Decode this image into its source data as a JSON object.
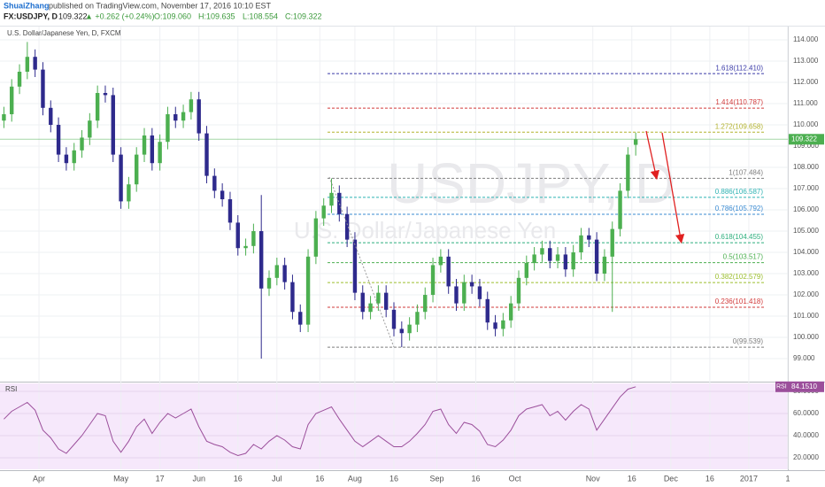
{
  "header": {
    "author": "ShuaiZhang",
    "published": "published on TradingView.com, November 17, 2016 10:10 EST",
    "symbol": "FX:USDJPY, D",
    "price": "109.322",
    "change": "▲ +0.262 (+0.24%)",
    "open": "O:109.060",
    "high": "H:109.635",
    "low": "L:108.554",
    "close": "C:109.322"
  },
  "chart_data": {
    "type": "candlestick",
    "title": "U.S. Dollar/Japanese Yen, D, FXCM",
    "watermark": "USDJPY, D",
    "watermark_subtitle": "U.S. Dollar/Japanese Yen",
    "up_color": "#4caf50",
    "down_color": "#2e2a8c",
    "x": [
      0,
      2,
      4,
      6,
      8,
      10,
      12,
      14,
      16,
      18,
      20,
      22,
      24,
      26,
      28,
      30,
      32,
      34,
      36,
      38,
      40,
      42,
      44,
      46,
      48,
      50,
      52,
      54,
      56,
      58,
      60,
      62,
      64,
      66,
      68,
      70,
      72,
      74,
      76,
      78,
      80,
      82,
      84,
      86,
      88,
      90,
      92,
      94,
      96,
      98,
      100,
      102,
      104,
      106,
      108,
      110,
      112,
      114,
      116,
      118,
      120,
      122,
      124,
      126,
      128,
      130,
      132,
      134,
      136,
      138,
      140,
      142,
      144,
      146,
      148,
      150,
      152,
      154,
      156,
      158,
      160,
      162
    ],
    "open": [
      110.2,
      110.5,
      111.8,
      112.5,
      113.2,
      112.6,
      110.8,
      110.0,
      108.6,
      108.2,
      108.8,
      109.4,
      110.2,
      111.5,
      111.4,
      108.6,
      106.4,
      107.2,
      108.6,
      109.5,
      108.2,
      109.2,
      110.5,
      110.2,
      110.6,
      111.2,
      109.6,
      107.6,
      106.9,
      106.5,
      105.4,
      104.2,
      104.3,
      105.0,
      102.3,
      102.8,
      103.4,
      102.6,
      101.2,
      100.6,
      103.8,
      105.6,
      106.2,
      106.8,
      105.8,
      104.6,
      102.1,
      101.2,
      101.6,
      102.1,
      101.3,
      100.4,
      100.2,
      100.6,
      101.2,
      102.0,
      103.4,
      103.8,
      102.4,
      101.6,
      102.6,
      102.4,
      101.8,
      100.7,
      100.4,
      100.8,
      101.6,
      102.8,
      103.5,
      103.9,
      104.2,
      103.6,
      103.9,
      103.2,
      104.0,
      104.8,
      104.6,
      103.0,
      103.8,
      105.1,
      106.9,
      109.06
    ],
    "high": [
      110.85,
      112.15,
      112.85,
      113.9,
      113.55,
      112.95,
      111.15,
      110.35,
      108.95,
      109.15,
      109.75,
      110.55,
      111.85,
      111.85,
      111.75,
      108.95,
      107.55,
      108.95,
      109.85,
      109.85,
      109.55,
      110.85,
      110.85,
      110.95,
      111.55,
      111.55,
      109.95,
      107.95,
      107.25,
      106.85,
      105.75,
      104.65,
      105.35,
      106.7,
      103.15,
      103.75,
      103.75,
      102.95,
      101.55,
      104.15,
      105.95,
      106.55,
      107.48,
      107.15,
      106.15,
      104.95,
      102.45,
      101.95,
      102.45,
      102.45,
      101.65,
      100.75,
      100.95,
      101.55,
      102.35,
      103.75,
      104.15,
      104.15,
      102.75,
      102.95,
      102.95,
      102.75,
      102.15,
      101.05,
      101.15,
      101.95,
      103.15,
      103.85,
      104.25,
      104.55,
      104.55,
      104.25,
      104.25,
      104.35,
      105.15,
      105.15,
      104.95,
      104.15,
      105.45,
      107.25,
      108.95,
      109.635
    ],
    "low": [
      109.85,
      110.15,
      111.45,
      112.15,
      112.25,
      110.45,
      109.65,
      108.25,
      107.85,
      107.85,
      108.45,
      109.05,
      109.85,
      111.05,
      108.25,
      106.05,
      106.05,
      106.85,
      108.25,
      107.85,
      107.85,
      108.85,
      109.85,
      109.85,
      110.25,
      109.25,
      107.25,
      106.55,
      106.15,
      105.05,
      103.85,
      103.85,
      103.95,
      99.0,
      101.95,
      102.45,
      102.25,
      100.85,
      100.25,
      100.25,
      103.45,
      105.25,
      105.85,
      105.45,
      104.25,
      101.75,
      100.85,
      100.85,
      101.25,
      100.95,
      100.05,
      99.54,
      99.85,
      100.25,
      100.85,
      101.65,
      103.05,
      102.05,
      101.25,
      101.25,
      102.05,
      101.45,
      100.35,
      100.05,
      100.05,
      100.45,
      101.25,
      102.45,
      103.15,
      103.55,
      103.25,
      103.25,
      102.85,
      102.85,
      103.65,
      104.25,
      102.65,
      102.65,
      101.2,
      104.75,
      106.55,
      108.554
    ],
    "close": [
      110.5,
      111.8,
      112.5,
      113.2,
      112.6,
      110.8,
      110.0,
      108.6,
      108.2,
      108.8,
      109.4,
      110.2,
      111.5,
      111.4,
      108.6,
      106.4,
      107.2,
      108.6,
      109.5,
      108.2,
      109.2,
      110.5,
      110.2,
      110.6,
      111.2,
      109.6,
      107.6,
      106.9,
      106.5,
      105.4,
      104.2,
      104.3,
      105.0,
      102.3,
      102.8,
      103.4,
      102.6,
      101.2,
      100.6,
      103.8,
      105.6,
      106.2,
      106.8,
      105.8,
      104.6,
      102.1,
      101.2,
      101.6,
      102.1,
      101.3,
      100.4,
      100.2,
      100.6,
      101.2,
      102.0,
      103.4,
      103.8,
      102.4,
      101.6,
      102.6,
      102.4,
      101.8,
      100.7,
      100.4,
      100.8,
      101.6,
      102.8,
      103.5,
      103.9,
      104.2,
      103.6,
      103.9,
      103.2,
      104.0,
      104.8,
      104.6,
      103.0,
      103.8,
      105.1,
      106.9,
      108.6,
      109.322
    ],
    "xlim": [
      -1,
      201
    ],
    "xticks": [
      {
        "value": 9,
        "label": "Apr"
      },
      {
        "value": 30,
        "label": "May"
      },
      {
        "value": 40,
        "label": "17"
      },
      {
        "value": 50,
        "label": "Jun"
      },
      {
        "value": 60,
        "label": "16"
      },
      {
        "value": 70,
        "label": "Jul"
      },
      {
        "value": 81,
        "label": "16"
      },
      {
        "value": 90,
        "label": "Aug"
      },
      {
        "value": 100,
        "label": "16"
      },
      {
        "value": 111,
        "label": "Sep"
      },
      {
        "value": 121,
        "label": "16"
      },
      {
        "value": 131,
        "label": "Oct"
      },
      {
        "value": 151,
        "label": "Nov"
      },
      {
        "value": 161,
        "label": "16"
      },
      {
        "value": 171,
        "label": "Dec"
      },
      {
        "value": 181,
        "label": "16"
      },
      {
        "value": 191,
        "label": "2017"
      },
      {
        "value": 201,
        "label": "1"
      }
    ],
    "ylim": [
      97.96,
      114.625
    ],
    "yticks": [
      {
        "value": 99,
        "label": "99.000"
      },
      {
        "value": 100,
        "label": "100.000"
      },
      {
        "value": 101,
        "label": "101.000"
      },
      {
        "value": 102,
        "label": "102.000"
      },
      {
        "value": 103,
        "label": "103.000"
      },
      {
        "value": 104,
        "label": "104.000"
      },
      {
        "value": 105,
        "label": "105.000"
      },
      {
        "value": 106,
        "label": "106.000"
      },
      {
        "value": 107,
        "label": "107.000"
      },
      {
        "value": 108,
        "label": "108.000"
      },
      {
        "value": 109,
        "label": "109.000"
      },
      {
        "value": 110,
        "label": "110.000"
      },
      {
        "value": 111,
        "label": "111.000"
      },
      {
        "value": 112,
        "label": "112.000"
      },
      {
        "value": 113,
        "label": "113.000"
      },
      {
        "value": 114,
        "label": "114.000"
      }
    ],
    "grid": true,
    "last_price": 109.322,
    "last_price_color": "#4caf50",
    "fib_levels": [
      {
        "value": 112.41,
        "label": "1.618(112.410)",
        "color": "#3b3ba8"
      },
      {
        "value": 110.787,
        "label": "1.414(110.787)",
        "color": "#d23b3b"
      },
      {
        "value": 109.658,
        "label": "1.272(109.658)",
        "color": "#b3b32e"
      },
      {
        "value": 107.484,
        "label": "1(107.484)",
        "color": "#7f7f7f"
      },
      {
        "value": 106.587,
        "label": "0.886(106.587)",
        "color": "#2eb3b3"
      },
      {
        "value": 105.792,
        "label": "0.786(105.792)",
        "color": "#3b8bd2"
      },
      {
        "value": 104.455,
        "label": "0.618(104.455)",
        "color": "#2eaf7d"
      },
      {
        "value": 103.517,
        "label": "0.5(103.517)",
        "color": "#4caf50"
      },
      {
        "value": 102.579,
        "label": "0.382(102.579)",
        "color": "#9cbf2e"
      },
      {
        "value": 101.418,
        "label": "0.236(101.418)",
        "color": "#d23b3b"
      },
      {
        "value": 99.539,
        "label": "0(99.539)",
        "color": "#7f7f7f"
      }
    ],
    "rsi": {
      "name": "RSI",
      "color": "#9b4f9b",
      "values": [
        55,
        62,
        66,
        70,
        63,
        45,
        38,
        28,
        24,
        32,
        40,
        50,
        60,
        58,
        35,
        25,
        35,
        48,
        55,
        42,
        52,
        60,
        56,
        60,
        64,
        48,
        35,
        32,
        30,
        25,
        22,
        24,
        32,
        28,
        35,
        40,
        36,
        30,
        28,
        50,
        60,
        63,
        66,
        55,
        45,
        35,
        30,
        35,
        40,
        35,
        30,
        30,
        35,
        42,
        50,
        62,
        64,
        50,
        42,
        52,
        50,
        44,
        32,
        30,
        36,
        45,
        58,
        64,
        66,
        68,
        58,
        62,
        54,
        62,
        68,
        64,
        45,
        55,
        65,
        75,
        82,
        84.151
      ],
      "last_value": {
        "value": 84.151,
        "label": "84.1510"
      },
      "ylim": [
        9.6,
        87.2
      ],
      "yticks": [
        {
          "value": 20,
          "label": "20.0000"
        },
        {
          "value": 40,
          "label": "40.0000"
        },
        {
          "value": 60,
          "label": "60.0000"
        },
        {
          "value": 80,
          "label": "80.0000"
        }
      ]
    }
  }
}
